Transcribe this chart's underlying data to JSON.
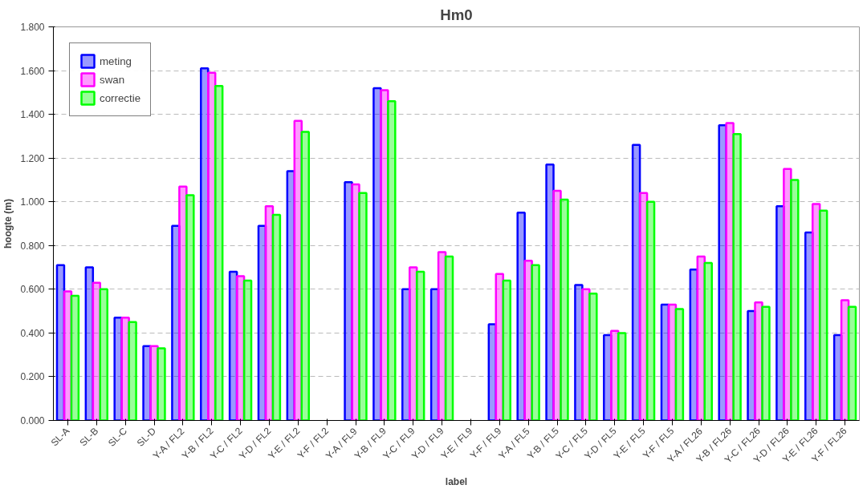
{
  "chart_data": {
    "type": "bar",
    "title": "Hm0",
    "xlabel": "label",
    "ylabel": "hoogte (m)",
    "categories": [
      "SL-A",
      "SL-B",
      "SL-C",
      "SL-D",
      "Y-A / FL2",
      "Y-B / FL2",
      "Y-C / FL2",
      "Y-D / FL2",
      "Y-E / FL2",
      "Y-F / FL2",
      "Y-A / FL9",
      "Y-B / FL9",
      "Y-C / FL9",
      "Y-D / FL9",
      "Y-E / FL9",
      "Y-F / FL9",
      "Y-A / FL5",
      "Y-B / FL5",
      "Y-C / FL5",
      "Y-D / FL5",
      "Y-E / FL5",
      "Y-F / FL5",
      "Y-A / FL26",
      "Y-B / FL26",
      "Y-C / FL26",
      "Y-D / FL26",
      "Y-E / FL26",
      "Y-F / FL26"
    ],
    "series": [
      {
        "name": "meting",
        "color": "#0000ff",
        "values": [
          0.71,
          0.7,
          0.47,
          0.34,
          0.89,
          1.61,
          0.68,
          0.89,
          1.14,
          null,
          1.09,
          1.52,
          0.6,
          0.6,
          null,
          0.44,
          0.95,
          1.17,
          0.62,
          0.39,
          1.26,
          0.53,
          0.69,
          1.35,
          0.5,
          0.98,
          0.86,
          0.39
        ]
      },
      {
        "name": "swan",
        "color": "#ff00ff",
        "values": [
          0.59,
          0.63,
          0.47,
          0.34,
          1.07,
          1.59,
          0.66,
          0.98,
          1.37,
          null,
          1.08,
          1.51,
          0.7,
          0.77,
          null,
          0.67,
          0.73,
          1.05,
          0.6,
          0.41,
          1.04,
          0.53,
          0.75,
          1.36,
          0.54,
          1.15,
          0.99,
          0.55
        ]
      },
      {
        "name": "correctie",
        "color": "#00ff00",
        "values": [
          0.57,
          0.6,
          0.45,
          0.33,
          1.03,
          1.53,
          0.64,
          0.94,
          1.32,
          null,
          1.04,
          1.46,
          0.68,
          0.75,
          null,
          0.64,
          0.71,
          1.01,
          0.58,
          0.4,
          1.0,
          0.51,
          0.72,
          1.31,
          0.52,
          1.1,
          0.96,
          0.52
        ]
      }
    ],
    "ylim": [
      0,
      1.8
    ],
    "yticks": [
      {
        "value": 0,
        "label": "0.000"
      },
      {
        "value": 0.2,
        "label": "0.200"
      },
      {
        "value": 0.4,
        "label": "0.400"
      },
      {
        "value": 0.6,
        "label": "0.600"
      },
      {
        "value": 0.8,
        "label": "0.800"
      },
      {
        "value": 1.0,
        "label": "1.000"
      },
      {
        "value": 1.2,
        "label": "1.200"
      },
      {
        "value": 1.4,
        "label": "1.400"
      },
      {
        "value": 1.6,
        "label": "1.600"
      },
      {
        "value": 1.8,
        "label": "1.800"
      }
    ],
    "grid": "y",
    "legend": "top left"
  }
}
